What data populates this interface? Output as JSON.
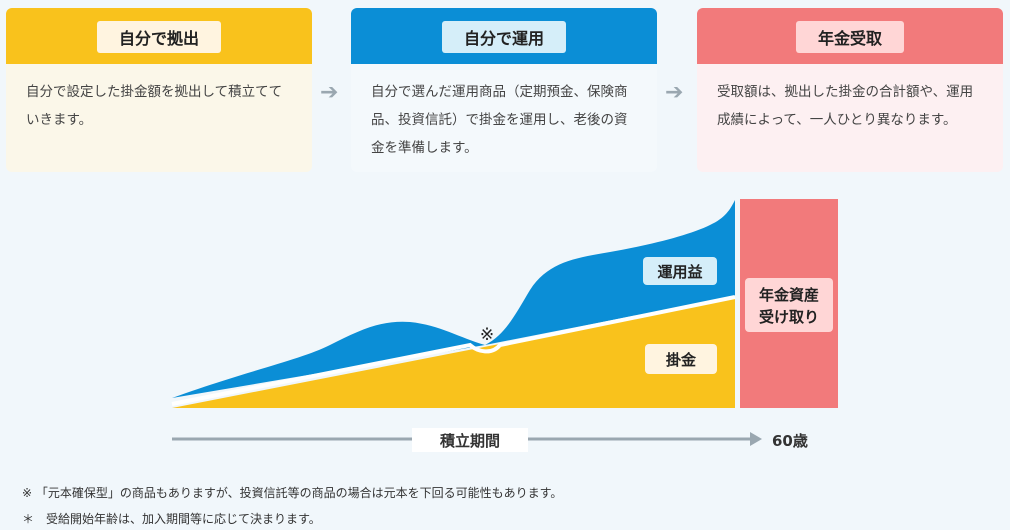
{
  "steps": [
    {
      "title": "自分で拠出",
      "text": "自分で設定した掛金額を拠出して積立てていきます。"
    },
    {
      "title": "自分で運用",
      "text": "自分で選んだ運用商品（定期預金、保険商品、投資信託）で掛金を運用し、老後の資金を準備します。"
    },
    {
      "title": "年金受取",
      "text": "受取額は、拠出した掛金の合計額や、運用成績によって、一人ひとり異なります。"
    }
  ],
  "diagram": {
    "profit_label": "運用益",
    "contribution_label": "掛金",
    "mark": "※",
    "payout_label_line1": "年金資産",
    "payout_label_line2": "受け取り",
    "period_label": "積立期間",
    "age_label": "60歳"
  },
  "notes": {
    "note1": "※ 「元本確保型」の商品もありますが、投資信託等の商品の場合は元本を下回る可能性もあります。",
    "note2": "＊　受給開始年齢は、加入期間等に応じて決まります。"
  },
  "colors": {
    "yellow": "#f9c21c",
    "blue": "#0b8ed6",
    "pink": "#f27a7b"
  }
}
